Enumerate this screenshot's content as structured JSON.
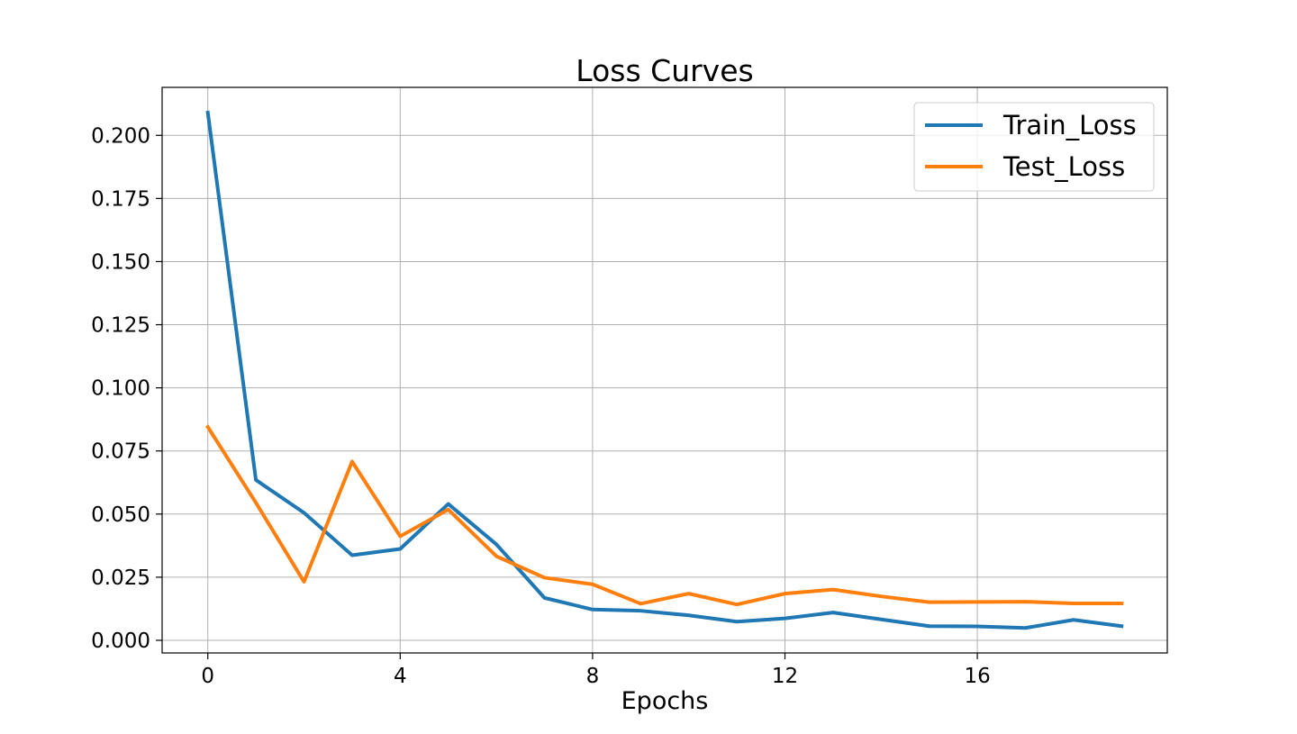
{
  "chart_data": {
    "type": "line",
    "title": "Loss Curves",
    "xlabel": "Epochs",
    "ylabel": "",
    "x": [
      0,
      1,
      2,
      3,
      4,
      5,
      6,
      7,
      8,
      9,
      10,
      11,
      12,
      13,
      14,
      15,
      16,
      17,
      18,
      19
    ],
    "xlim": [
      -0.95,
      19.95
    ],
    "ylim": [
      -0.005,
      0.219
    ],
    "xticks": [
      0,
      4,
      8,
      12,
      16
    ],
    "xtick_labels": [
      "0",
      "4",
      "8",
      "12",
      "16"
    ],
    "yticks": [
      0,
      0.025,
      0.05,
      0.075,
      0.1,
      0.125,
      0.15,
      0.175,
      0.2
    ],
    "ytick_labels": [
      "0.000",
      "0.025",
      "0.050",
      "0.075",
      "0.100",
      "0.125",
      "0.150",
      "0.175",
      "0.200"
    ],
    "grid": true,
    "legend_position": "top-right",
    "series": [
      {
        "name": "Train_Loss",
        "color": "#1f77b4",
        "values": [
          0.209,
          0.0635,
          0.0505,
          0.0337,
          0.0362,
          0.054,
          0.038,
          0.0168,
          0.0122,
          0.0117,
          0.0099,
          0.0074,
          0.0087,
          0.011,
          0.0083,
          0.0056,
          0.0055,
          0.0049,
          0.0081,
          0.0056
        ]
      },
      {
        "name": "Test_Loss",
        "color": "#ff7f0e",
        "values": [
          0.0845,
          0.0545,
          0.0232,
          0.0708,
          0.0412,
          0.0518,
          0.0333,
          0.0248,
          0.0222,
          0.0145,
          0.0185,
          0.0142,
          0.0185,
          0.0201,
          0.0174,
          0.0151,
          0.0152,
          0.0153,
          0.0146,
          0.0146
        ]
      }
    ]
  }
}
